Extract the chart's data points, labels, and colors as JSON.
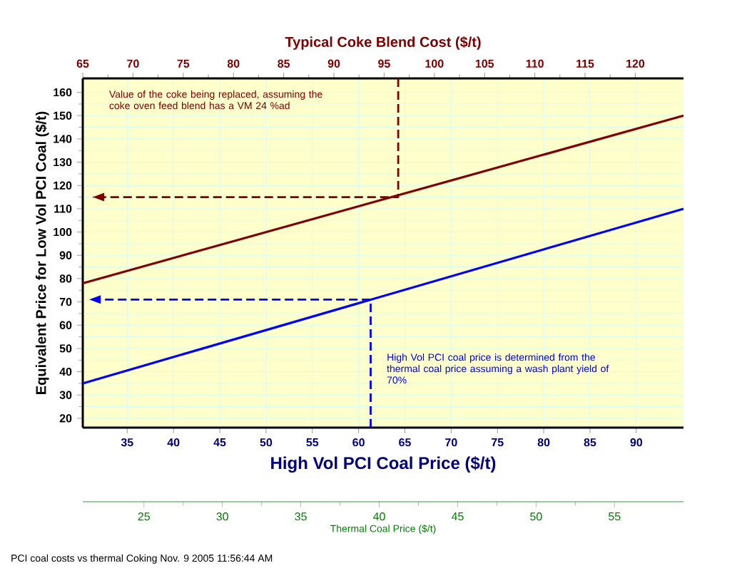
{
  "chart_data": [
    {
      "type": "line",
      "xlabel": "High Vol PCI Coal Price ($/t)",
      "ylabel": "Equivalent Price for Low Vol PCI Coal ($/t)",
      "x2label": "Typical Coke Blend Cost ($/t)",
      "xlim": [
        30.2,
        95.1
      ],
      "xticks": [
        35,
        40,
        45,
        50,
        55,
        60,
        65,
        70,
        75,
        80,
        85,
        90
      ],
      "x2lim": [
        65,
        124.8
      ],
      "x2ticks": [
        65,
        70,
        75,
        80,
        85,
        90,
        95,
        100,
        105,
        110,
        115,
        120
      ],
      "ylim": [
        16,
        166
      ],
      "yticks": [
        20,
        30,
        40,
        50,
        60,
        70,
        80,
        90,
        100,
        110,
        120,
        130,
        140,
        150,
        160
      ],
      "grid": true,
      "marker": "none",
      "series": [
        {
          "color": "#800000",
          "axis": "x2",
          "x": [
            65,
            124.8
          ],
          "values": [
            78,
            150
          ]
        },
        {
          "color": "#800000",
          "axis": "x2",
          "line_style": "dashed",
          "x": [
            96.4,
            96.4,
            66
          ],
          "values": [
            166,
            115,
            115
          ]
        },
        {
          "color": "#0000ff",
          "line_style": "dashed",
          "x": [
            61.3,
            61.3,
            30.9
          ],
          "values": [
            16,
            71,
            71
          ]
        }
      ],
      "annotations": [
        "Value of the coke being replaced, assuming the coke oven feed blend has a VM 24 %ad",
        "High Vol PCI coal price is determined from the thermal coal price assuming a wash plant yield of 70%",
        "PCI coal costs vs thermal Coking Nov. 9 2005 11:56:44 AM"
      ]
    },
    {
      "type": "line",
      "xlabel": "Thermal Coal Price ($/t)",
      "xlim": [
        21.1,
        59.4
      ],
      "xticks": [
        25,
        30,
        35,
        40,
        45,
        50,
        55
      ],
      "ylim": [
        16,
        166
      ],
      "tick_labels": "x",
      "series": [
        {
          "color": "#0000ff",
          "x": [
            21.1,
            59.4
          ],
          "values": [
            35,
            110
          ]
        }
      ]
    }
  ]
}
